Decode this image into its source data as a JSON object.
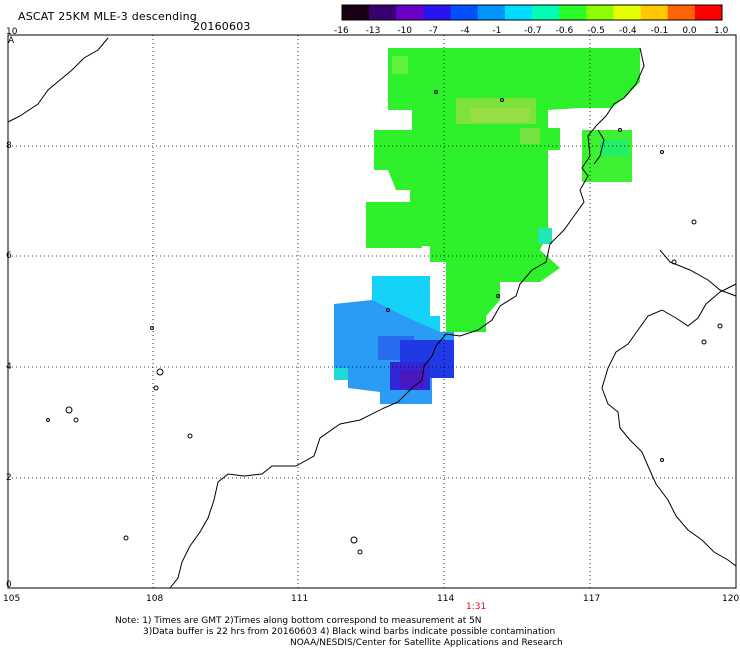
{
  "header": {
    "title": "ASCAT 25KM MLE-3 descending",
    "date": "20160603"
  },
  "colorbar": {
    "labels": [
      "-16",
      "-13",
      "-10",
      "-7",
      "-4",
      "-1",
      "-0.7",
      "-0.6",
      "-0.5",
      "-0.4",
      "-0.1",
      "0.0",
      "1.0"
    ],
    "colors": [
      "#1a0014",
      "#3a0070",
      "#6a00c8",
      "#2814f0",
      "#0050ff",
      "#0096ff",
      "#00dcff",
      "#00ffb4",
      "#28ff28",
      "#8cff00",
      "#e6ff00",
      "#ffc800",
      "#ff6400",
      "#ff0000"
    ]
  },
  "map": {
    "lat_labels": [
      "0",
      "2",
      "4",
      "6",
      "8",
      "10"
    ],
    "lon_labels": [
      "105",
      "108",
      "111",
      "114",
      "117",
      "120"
    ],
    "time_label": "1:31",
    "corner_label": "A"
  },
  "footer": {
    "line1": "Note: 1) Times are GMT 2)Times along bottom correspond to measurement at 5N",
    "line2": "3)Data buffer is 22 hrs from 20160603 4) Black wind barbs indicate possible contamination",
    "line3": "NOAA/NESDIS/Center for Satellite Applications and Research"
  }
}
